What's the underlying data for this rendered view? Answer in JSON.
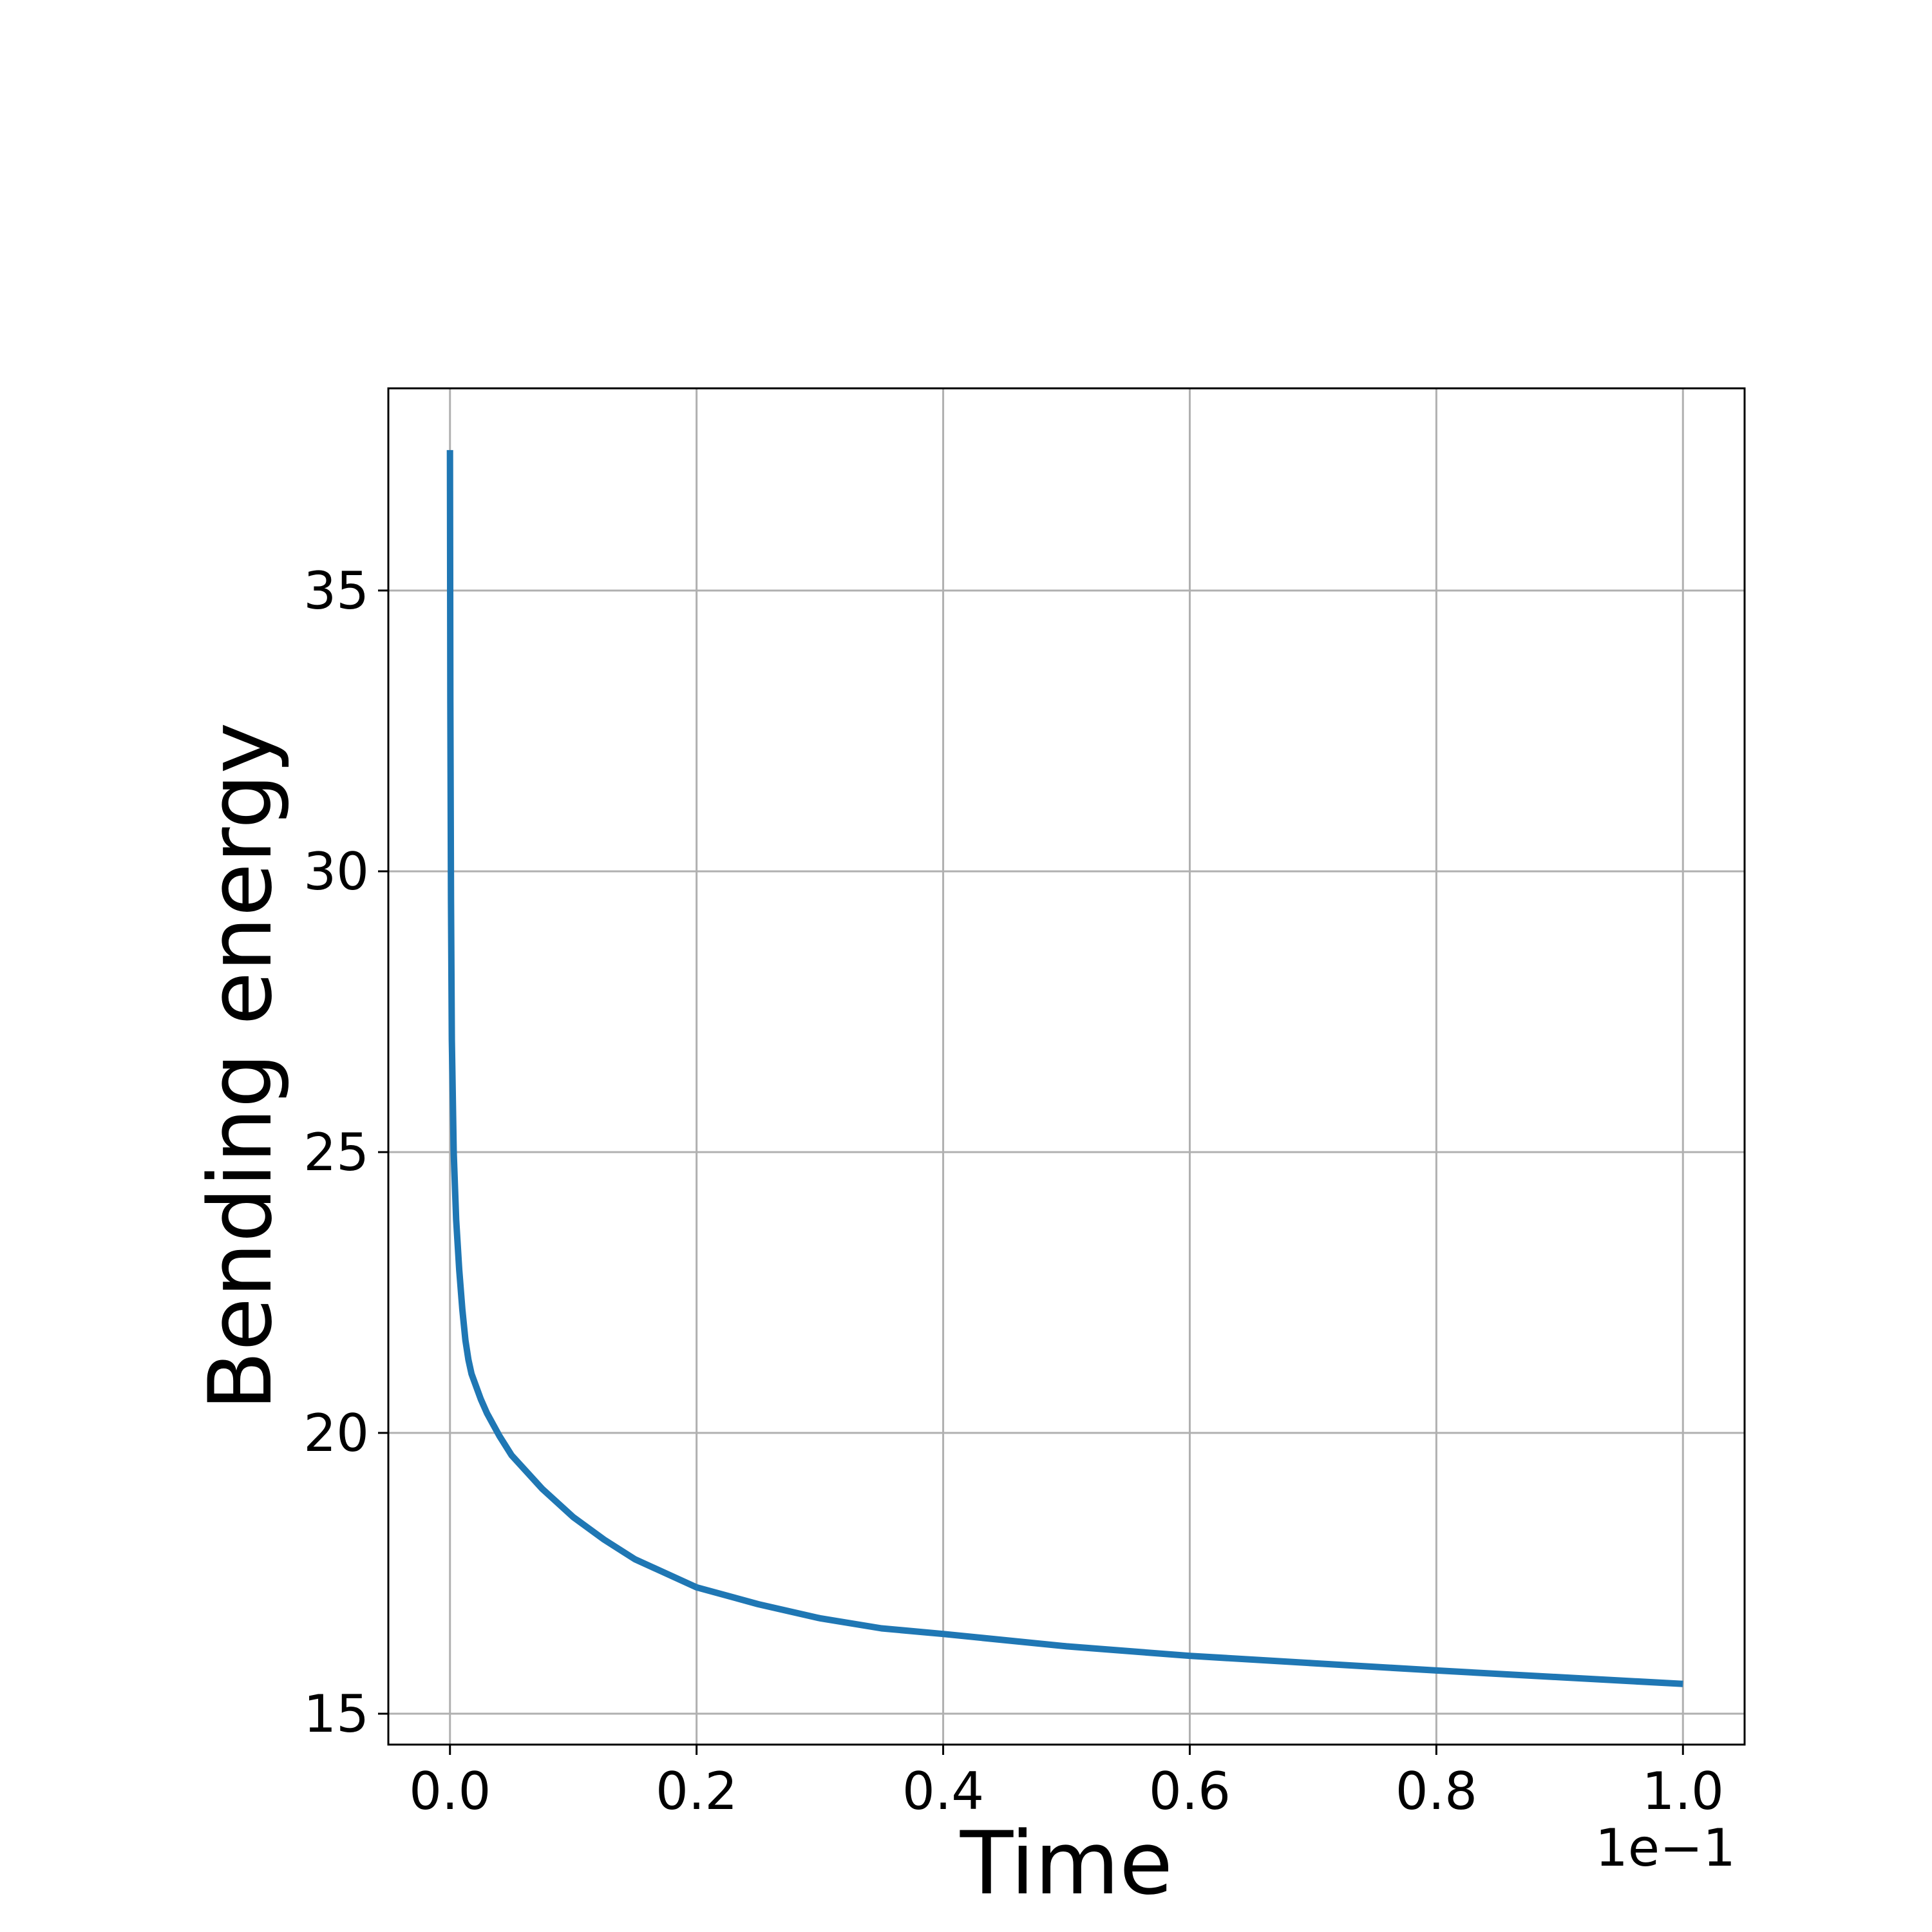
{
  "chart_data": {
    "type": "line",
    "title": "",
    "xlabel": "Time",
    "ylabel": "Bending energy",
    "x_offset_label": "1e−1",
    "xlim": [
      -0.05,
      1.05
    ],
    "ylim": [
      14.45,
      38.6
    ],
    "x_ticks": [
      0.0,
      0.2,
      0.4,
      0.6,
      0.8,
      1.0
    ],
    "x_tick_labels": [
      "0.0",
      "0.2",
      "0.4",
      "0.6",
      "0.8",
      "1.0"
    ],
    "y_ticks": [
      15,
      20,
      25,
      30,
      35
    ],
    "y_tick_labels": [
      "15",
      "20",
      "25",
      "30",
      "35"
    ],
    "grid": true,
    "legend": "none",
    "series": [
      {
        "color": "#1f77b4",
        "x": [
          0.0,
          0.0003,
          0.0008,
          0.0015,
          0.003,
          0.005,
          0.0075,
          0.01,
          0.0125,
          0.015,
          0.0175,
          0.02,
          0.025,
          0.03,
          0.04,
          0.05,
          0.075,
          0.1,
          0.125,
          0.15,
          0.2,
          0.25,
          0.3,
          0.35,
          0.4,
          0.5,
          0.6,
          0.7,
          0.8,
          0.9,
          1.0
        ],
        "y": [
          37.5,
          33.0,
          29.5,
          27.0,
          25.0,
          23.8,
          22.9,
          22.2,
          21.65,
          21.3,
          21.05,
          20.9,
          20.6,
          20.35,
          19.95,
          19.6,
          19.0,
          18.5,
          18.1,
          17.75,
          17.25,
          16.95,
          16.7,
          16.52,
          16.42,
          16.2,
          16.03,
          15.9,
          15.77,
          15.65,
          15.53
        ]
      }
    ]
  }
}
